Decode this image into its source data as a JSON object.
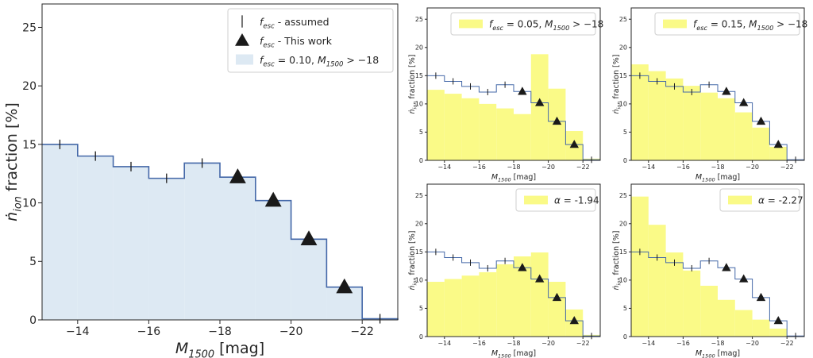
{
  "figure": {
    "colors": {
      "blue_fill": "#dde9f3",
      "blue_line": "#4468a8",
      "yellow_fill": "#fafa87",
      "marker": "#1a1a1a"
    }
  },
  "chart_data": [
    {
      "type": "histogram",
      "xlabel": "M₁₅₀₀ [mag]",
      "ylabel": "ṅ_ion fraction [%]",
      "xlim": [
        -13,
        -23
      ],
      "ylim": [
        0,
        27
      ],
      "x_ticks": [
        -14,
        -16,
        -18,
        -20,
        -22
      ],
      "y_ticks": [
        0,
        5,
        10,
        15,
        20,
        25
      ],
      "bin_edges": [
        -13,
        -14,
        -15,
        -16,
        -17,
        -18,
        -19,
        -20,
        -21,
        -22,
        -23
      ],
      "assumed_values": [
        15.0,
        14.0,
        13.1,
        12.1,
        13.4,
        12.2,
        10.2,
        6.9,
        2.8,
        0.1
      ],
      "this_work_x": [
        -18.5,
        -19.5,
        -20.5,
        -21.5
      ],
      "this_work_y": [
        12.2,
        10.2,
        6.9,
        2.8
      ],
      "legend": {
        "position": "top-right",
        "entries": [
          {
            "label": "f_esc - assumed",
            "marker": "vline"
          },
          {
            "label": "f_esc - This work",
            "marker": "triangle"
          },
          {
            "label": "f_esc = 0.10, M₁₅₀₀ > −18",
            "marker": "patch"
          }
        ]
      },
      "series": [
        {
          "fill": "blue",
          "values": [
            15.0,
            14.0,
            13.1,
            12.1,
            13.4,
            12.2,
            10.2,
            6.9,
            2.8,
            0.1
          ]
        }
      ]
    },
    {
      "type": "histogram",
      "xlabel": "M₁₅₀₀ [mag]",
      "ylabel": "ṅ_ion fraction [%]",
      "legend": {
        "position": "top-right",
        "entries": [
          {
            "label": "f_esc = 0.05, M₁₅₀₀ > −18",
            "marker": "patch"
          }
        ]
      },
      "series": [
        {
          "fill": "yellow",
          "values": [
            12.5,
            11.8,
            11.0,
            10.0,
            9.2,
            8.2,
            18.8,
            12.7,
            5.2,
            0.3
          ]
        }
      ]
    },
    {
      "type": "histogram",
      "xlabel": "M₁₅₀₀ [mag]",
      "ylabel": "ṅ_ion fraction [%]",
      "legend": {
        "position": "top-right",
        "entries": [
          {
            "label": "f_esc = 0.15, M₁₅₀₀ > −18",
            "marker": "patch"
          }
        ]
      },
      "series": [
        {
          "fill": "yellow",
          "values": [
            17.0,
            15.8,
            14.5,
            13.2,
            12.0,
            11.0,
            8.5,
            5.8,
            2.4,
            0.1
          ]
        }
      ]
    },
    {
      "type": "histogram",
      "xlabel": "M₁₅₀₀ [mag]",
      "ylabel": "ṅ_ion fraction [%]",
      "legend": {
        "position": "top-right",
        "entries": [
          {
            "label": "α = -1.94",
            "marker": "patch"
          }
        ]
      },
      "series": [
        {
          "fill": "yellow",
          "values": [
            9.7,
            10.2,
            10.8,
            11.4,
            12.8,
            14.2,
            14.9,
            9.7,
            4.8,
            0.3
          ]
        }
      ]
    },
    {
      "type": "histogram",
      "xlabel": "M₁₅₀₀ [mag]",
      "ylabel": "ṅ_ion fraction [%]",
      "legend": {
        "position": "top-right",
        "entries": [
          {
            "label": "α = -2.27",
            "marker": "patch"
          }
        ]
      },
      "series": [
        {
          "fill": "yellow",
          "values": [
            24.8,
            19.8,
            14.9,
            11.7,
            9.0,
            6.5,
            4.7,
            3.0,
            1.4,
            0.1
          ]
        }
      ]
    }
  ]
}
